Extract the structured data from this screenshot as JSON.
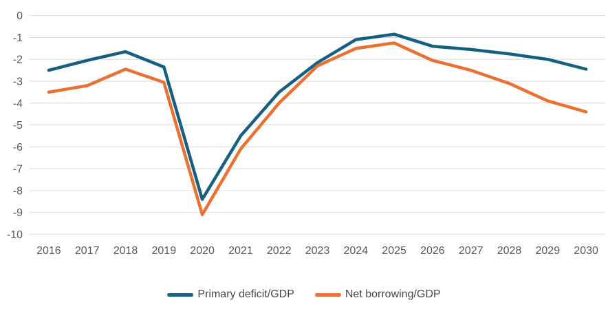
{
  "chart_data": {
    "type": "line",
    "title": "",
    "xlabel": "",
    "ylabel": "",
    "categories": [
      "2016",
      "2017",
      "2018",
      "2019",
      "2020",
      "2021",
      "2022",
      "2023",
      "2024",
      "2025",
      "2026",
      "2027",
      "2028",
      "2029",
      "2030"
    ],
    "y_tick_labels": [
      "0",
      "-1",
      "-2",
      "-3",
      "-4",
      "-5",
      "-6",
      "-7",
      "-8",
      "-9",
      "-10"
    ],
    "y_tick_values": [
      0,
      -1,
      -2,
      -3,
      -4,
      -5,
      -6,
      -7,
      -8,
      -9,
      -10
    ],
    "ylim": [
      -10,
      0
    ],
    "grid": true,
    "legend_position": "bottom",
    "series": [
      {
        "name": "Primary deficit/GDP",
        "color": "#156082",
        "values": [
          -2.5,
          -2.05,
          -1.65,
          -2.35,
          -8.4,
          -5.5,
          -3.5,
          -2.15,
          -1.1,
          -0.85,
          -1.4,
          -1.55,
          -1.75,
          -2.0,
          -2.45
        ]
      },
      {
        "name": "Net borrowing/GDP",
        "color": "#E97132",
        "values": [
          -3.5,
          -3.2,
          -2.45,
          -3.05,
          -9.1,
          -6.1,
          -4.0,
          -2.3,
          -1.5,
          -1.25,
          -2.05,
          -2.5,
          -3.1,
          -3.9,
          -4.4
        ]
      }
    ],
    "colors": {
      "gridline": "#D9D9D9",
      "axis_text": "#595959",
      "legend_text": "#474747",
      "background": "#FFFFFF"
    }
  }
}
